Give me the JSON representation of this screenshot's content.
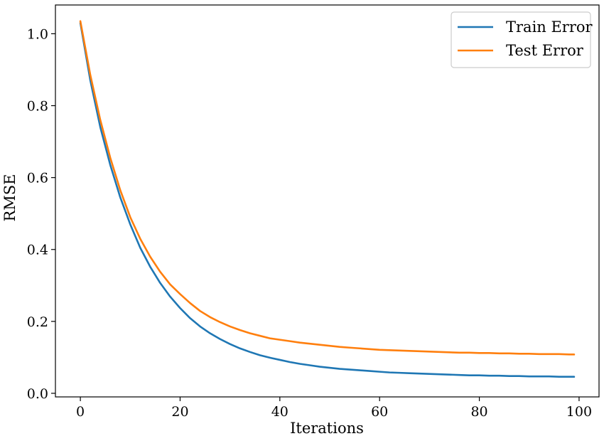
{
  "chart_data": {
    "type": "line",
    "title": "",
    "xlabel": "Iterations",
    "ylabel": "RMSE",
    "xlim": [
      -5,
      104
    ],
    "ylim": [
      -0.01,
      1.08
    ],
    "x_ticks": [
      0,
      20,
      40,
      60,
      80,
      100
    ],
    "y_ticks": [
      0.0,
      0.2,
      0.4,
      0.6,
      0.8,
      1.0
    ],
    "x_tick_labels": [
      "0",
      "20",
      "40",
      "60",
      "80",
      "100"
    ],
    "y_tick_labels": [
      "0.0",
      "0.2",
      "0.4",
      "0.6",
      "0.8",
      "1.0"
    ],
    "grid": false,
    "legend_position": "top-right",
    "x": [
      0,
      2,
      4,
      6,
      8,
      10,
      12,
      14,
      16,
      18,
      20,
      22,
      24,
      26,
      28,
      30,
      32,
      34,
      36,
      38,
      40,
      42,
      44,
      46,
      48,
      50,
      52,
      54,
      56,
      58,
      60,
      62,
      64,
      66,
      68,
      70,
      72,
      74,
      76,
      78,
      80,
      82,
      84,
      86,
      88,
      90,
      92,
      94,
      96,
      98,
      99
    ],
    "series": [
      {
        "name": "Train Error",
        "color": "#1f77b4",
        "values": [
          1.03,
          0.87,
          0.74,
          0.635,
          0.545,
          0.47,
          0.405,
          0.352,
          0.307,
          0.269,
          0.237,
          0.209,
          0.186,
          0.167,
          0.151,
          0.137,
          0.125,
          0.115,
          0.106,
          0.099,
          0.093,
          0.087,
          0.082,
          0.078,
          0.074,
          0.071,
          0.068,
          0.066,
          0.064,
          0.062,
          0.06,
          0.058,
          0.057,
          0.056,
          0.055,
          0.054,
          0.053,
          0.052,
          0.051,
          0.05,
          0.05,
          0.049,
          0.049,
          0.048,
          0.048,
          0.047,
          0.047,
          0.047,
          0.046,
          0.046,
          0.046
        ]
      },
      {
        "name": "Test Error",
        "color": "#ff7f0e",
        "values": [
          1.035,
          0.885,
          0.76,
          0.655,
          0.565,
          0.49,
          0.43,
          0.38,
          0.338,
          0.303,
          0.276,
          0.251,
          0.229,
          0.212,
          0.198,
          0.186,
          0.176,
          0.167,
          0.16,
          0.153,
          0.149,
          0.145,
          0.141,
          0.138,
          0.135,
          0.132,
          0.129,
          0.127,
          0.125,
          0.123,
          0.121,
          0.12,
          0.119,
          0.118,
          0.117,
          0.116,
          0.115,
          0.114,
          0.113,
          0.113,
          0.112,
          0.112,
          0.111,
          0.111,
          0.11,
          0.11,
          0.109,
          0.109,
          0.109,
          0.108,
          0.108
        ]
      }
    ]
  }
}
